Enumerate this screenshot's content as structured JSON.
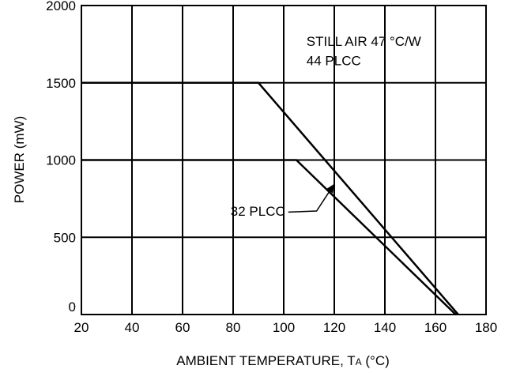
{
  "chart_data": {
    "type": "line",
    "title": "",
    "xlabel": {
      "main": "AMBIENT TEMPERATURE, T",
      "subscript": "A",
      "unit": " (°C)"
    },
    "ylabel": "POWER (mW)",
    "xlim": [
      20,
      180
    ],
    "ylim": [
      0,
      2000
    ],
    "x_ticks": [
      20,
      40,
      60,
      80,
      100,
      120,
      140,
      160,
      180
    ],
    "y_ticks": [
      0,
      500,
      1000,
      1500,
      2000
    ],
    "grid": true,
    "series": [
      {
        "name": "44 PLCC",
        "points": [
          [
            20,
            1500
          ],
          [
            90,
            1500
          ],
          [
            169,
            0
          ]
        ]
      },
      {
        "name": "32 PLCC",
        "points": [
          [
            20,
            1000
          ],
          [
            105,
            1000
          ],
          [
            168,
            0
          ]
        ]
      }
    ],
    "annotations": [
      {
        "text": "STILL AIR 47 °C/W",
        "at": [
          109,
          1740
        ]
      },
      {
        "text": "44 PLCC",
        "at": [
          109,
          1615
        ]
      },
      {
        "text": "32 PLCC",
        "at": [
          79,
          640
        ],
        "arrow_from": [
          113,
          670
        ],
        "arrow_to": [
          120,
          845
        ]
      }
    ]
  }
}
